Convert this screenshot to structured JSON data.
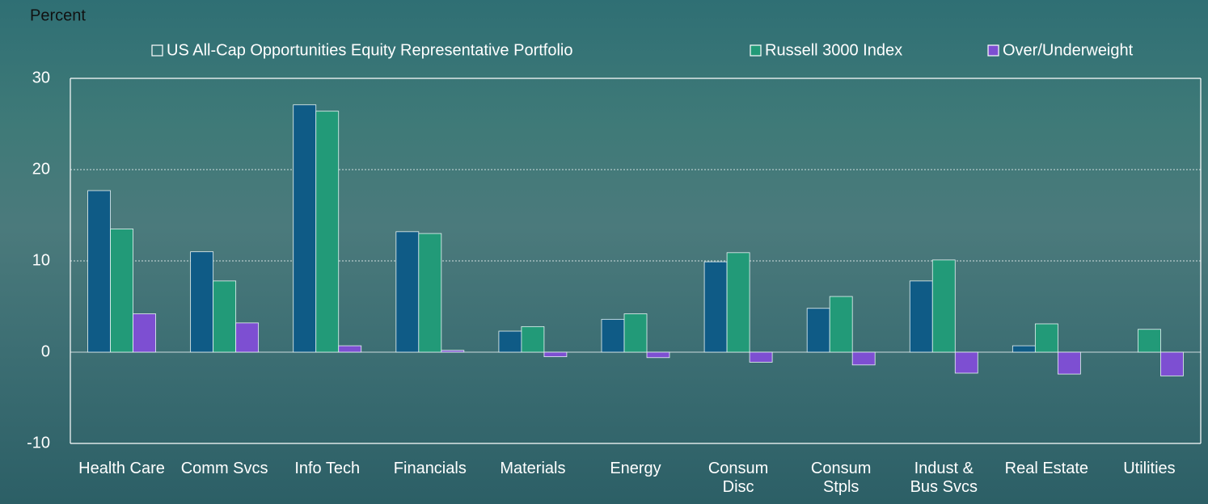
{
  "chart_data": {
    "type": "bar",
    "ylabel": "Percent",
    "categories": [
      "Health Care",
      "Comm Svcs",
      "Info Tech",
      "Financials",
      "Materials",
      "Energy",
      "Consum Disc",
      "Consum Stpls",
      "Indust & Bus Svcs",
      "Real Estate",
      "Utilities"
    ],
    "series": [
      {
        "name": "US All-Cap Opportunities Equity Representative Portfolio",
        "color": "#0f5b86",
        "values": [
          17.7,
          11.0,
          27.1,
          13.2,
          2.3,
          3.6,
          9.9,
          4.8,
          7.8,
          0.7,
          0
        ]
      },
      {
        "name": "Russell 3000 Index",
        "color": "#229a78",
        "values": [
          13.5,
          7.8,
          26.4,
          13.0,
          2.8,
          4.2,
          10.9,
          6.1,
          10.1,
          3.1,
          2.5
        ]
      },
      {
        "name": "Over/Underweight",
        "color": "#7d4fd2",
        "values": [
          4.2,
          3.2,
          0.7,
          0.2,
          -0.5,
          -0.6,
          -1.1,
          -1.4,
          -2.3,
          -2.4,
          -2.6
        ]
      }
    ],
    "ylim": [
      -10,
      30
    ],
    "yticks": [
      -10,
      0,
      10,
      20,
      30
    ],
    "grid": true,
    "legend": "top"
  }
}
